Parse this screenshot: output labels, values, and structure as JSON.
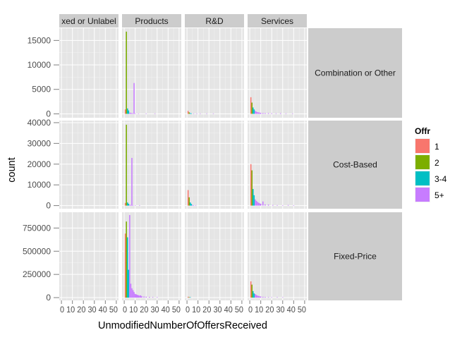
{
  "chart_data": {
    "type": "bar",
    "chart_subtype": "faceted-histogram",
    "xlabel": "UnmodifiedNumberOfOffersReceived",
    "ylabel": "count",
    "grid": true,
    "background": "#E5E5E5",
    "legend": {
      "title": "Offr",
      "placement": "right",
      "entries": [
        {
          "label": "1",
          "color": "#F8766D"
        },
        {
          "label": "2",
          "color": "#7CAE00"
        },
        {
          "label": "3-4",
          "color": "#00BFC4"
        },
        {
          "label": "5+",
          "color": "#C77CFF"
        }
      ]
    },
    "columns": [
      "Mixed or Unlabeled",
      "Products",
      "R&D",
      "Services"
    ],
    "column_labels_visible": [
      "xed or Unlabel",
      "Products",
      "R&D",
      "Services"
    ],
    "x_ticks": [
      "0",
      "10",
      "20",
      "30",
      "40",
      "50"
    ],
    "x_tick_text": [
      "0 10 20 30 40 50",
      "0 10 20 30 40 50",
      "0 10 20 30 40 50",
      "0 10 20 30 40 50"
    ],
    "xlim": [
      -2,
      52
    ],
    "rows": [
      {
        "label": "Combination or Other",
        "ylim": [
          -800,
          17500
        ],
        "y_ticks": [
          0,
          5000,
          10000,
          15000
        ],
        "y_tick_labels": [
          "0",
          "5000",
          "10000",
          "15000"
        ],
        "panels": [
          {
            "column": "Mixed or Unlabeled",
            "bars": []
          },
          {
            "column": "Products",
            "bars": [
              {
                "x": 1,
                "y": 900,
                "offr": "1"
              },
              {
                "x": 2,
                "y": 16800,
                "offr": "2"
              },
              {
                "x": 3,
                "y": 1100,
                "offr": "3-4"
              },
              {
                "x": 4,
                "y": 700,
                "offr": "3-4"
              },
              {
                "x": 5,
                "y": 250,
                "offr": "5+"
              },
              {
                "x": 6,
                "y": 200,
                "offr": "5+"
              },
              {
                "x": 7,
                "y": 150,
                "offr": "5+"
              },
              {
                "x": 8,
                "y": 100,
                "offr": "5+"
              },
              {
                "x": 9,
                "y": 6300,
                "offr": "5+"
              },
              {
                "x": 10,
                "y": 80,
                "offr": "5+"
              },
              {
                "x": 13,
                "y": 60,
                "offr": "5+"
              },
              {
                "x": 20,
                "y": 50,
                "offr": "5+"
              },
              {
                "x": 28,
                "y": 40,
                "offr": "5+"
              }
            ]
          },
          {
            "column": "R&D",
            "bars": [
              {
                "x": 1,
                "y": 600,
                "offr": "1"
              },
              {
                "x": 2,
                "y": 300,
                "offr": "2"
              },
              {
                "x": 3,
                "y": 150,
                "offr": "3-4"
              },
              {
                "x": 4,
                "y": 100,
                "offr": "3-4"
              },
              {
                "x": 6,
                "y": 80,
                "offr": "5+"
              },
              {
                "x": 9,
                "y": 60,
                "offr": "5+"
              },
              {
                "x": 12,
                "y": 50,
                "offr": "5+"
              },
              {
                "x": 18,
                "y": 40,
                "offr": "5+"
              },
              {
                "x": 24,
                "y": 40,
                "offr": "5+"
              }
            ]
          },
          {
            "column": "Services",
            "bars": [
              {
                "x": 1,
                "y": 3400,
                "offr": "1"
              },
              {
                "x": 2,
                "y": 2300,
                "offr": "2"
              },
              {
                "x": 3,
                "y": 1300,
                "offr": "3-4"
              },
              {
                "x": 4,
                "y": 900,
                "offr": "3-4"
              },
              {
                "x": 5,
                "y": 600,
                "offr": "5+"
              },
              {
                "x": 6,
                "y": 450,
                "offr": "5+"
              },
              {
                "x": 7,
                "y": 350,
                "offr": "5+"
              },
              {
                "x": 8,
                "y": 300,
                "offr": "5+"
              },
              {
                "x": 9,
                "y": 250,
                "offr": "5+"
              },
              {
                "x": 10,
                "y": 200,
                "offr": "5+"
              },
              {
                "x": 12,
                "y": 180,
                "offr": "5+"
              },
              {
                "x": 14,
                "y": 150,
                "offr": "5+"
              },
              {
                "x": 17,
                "y": 160,
                "offr": "5+"
              },
              {
                "x": 20,
                "y": 120,
                "offr": "5+"
              },
              {
                "x": 24,
                "y": 100,
                "offr": "5+"
              },
              {
                "x": 28,
                "y": 140,
                "offr": "5+"
              },
              {
                "x": 33,
                "y": 90,
                "offr": "5+"
              },
              {
                "x": 39,
                "y": 80,
                "offr": "5+"
              }
            ]
          }
        ]
      },
      {
        "label": "Cost-Based",
        "ylim": [
          -1500,
          41000
        ],
        "y_ticks": [
          0,
          10000,
          20000,
          30000,
          40000
        ],
        "y_tick_labels": [
          "0",
          "10000",
          "20000",
          "30000",
          "40000"
        ],
        "panels": [
          {
            "column": "Mixed or Unlabeled",
            "bars": []
          },
          {
            "column": "Products",
            "bars": [
              {
                "x": 1,
                "y": 1300,
                "offr": "1"
              },
              {
                "x": 2,
                "y": 39000,
                "offr": "2"
              },
              {
                "x": 3,
                "y": 1500,
                "offr": "3-4"
              },
              {
                "x": 4,
                "y": 900,
                "offr": "3-4"
              },
              {
                "x": 5,
                "y": 400,
                "offr": "5+"
              },
              {
                "x": 6,
                "y": 300,
                "offr": "5+"
              },
              {
                "x": 7,
                "y": 23000,
                "offr": "5+"
              },
              {
                "x": 8,
                "y": 200,
                "offr": "5+"
              },
              {
                "x": 10,
                "y": 120,
                "offr": "5+"
              },
              {
                "x": 14,
                "y": 80,
                "offr": "5+"
              }
            ]
          },
          {
            "column": "R&D",
            "bars": [
              {
                "x": 1,
                "y": 7500,
                "offr": "1"
              },
              {
                "x": 2,
                "y": 4000,
                "offr": "2"
              },
              {
                "x": 3,
                "y": 1500,
                "offr": "3-4"
              },
              {
                "x": 4,
                "y": 800,
                "offr": "3-4"
              },
              {
                "x": 5,
                "y": 300,
                "offr": "5+"
              },
              {
                "x": 6,
                "y": 200,
                "offr": "5+"
              },
              {
                "x": 8,
                "y": 100,
                "offr": "5+"
              }
            ]
          },
          {
            "column": "Services",
            "bars": [
              {
                "x": 1,
                "y": 20000,
                "offr": "1"
              },
              {
                "x": 2,
                "y": 17000,
                "offr": "2"
              },
              {
                "x": 3,
                "y": 8000,
                "offr": "3-4"
              },
              {
                "x": 4,
                "y": 5000,
                "offr": "3-4"
              },
              {
                "x": 5,
                "y": 3000,
                "offr": "5+"
              },
              {
                "x": 6,
                "y": 2300,
                "offr": "5+"
              },
              {
                "x": 7,
                "y": 1800,
                "offr": "5+"
              },
              {
                "x": 8,
                "y": 1400,
                "offr": "5+"
              },
              {
                "x": 9,
                "y": 1100,
                "offr": "5+"
              },
              {
                "x": 10,
                "y": 900,
                "offr": "5+"
              },
              {
                "x": 12,
                "y": 2000,
                "offr": "5+"
              },
              {
                "x": 14,
                "y": 600,
                "offr": "5+"
              },
              {
                "x": 17,
                "y": 500,
                "offr": "5+"
              },
              {
                "x": 21,
                "y": 300,
                "offr": "5+"
              },
              {
                "x": 25,
                "y": 250,
                "offr": "5+"
              },
              {
                "x": 30,
                "y": 200,
                "offr": "5+"
              },
              {
                "x": 35,
                "y": 300,
                "offr": "5+"
              },
              {
                "x": 40,
                "y": 150,
                "offr": "5+"
              }
            ]
          }
        ]
      },
      {
        "label": "Fixed-Price",
        "ylim": [
          -30000,
          920000
        ],
        "y_ticks": [
          0,
          250000,
          500000,
          750000
        ],
        "y_tick_labels": [
          "0",
          "250000",
          "500000",
          "750000"
        ],
        "panels": [
          {
            "column": "Mixed or Unlabeled",
            "bars": []
          },
          {
            "column": "Products",
            "bars": [
              {
                "x": 1,
                "y": 690000,
                "offr": "1"
              },
              {
                "x": 2,
                "y": 820000,
                "offr": "2"
              },
              {
                "x": 3,
                "y": 650000,
                "offr": "3-4"
              },
              {
                "x": 4,
                "y": 300000,
                "offr": "3-4"
              },
              {
                "x": 5,
                "y": 890000,
                "offr": "5+"
              },
              {
                "x": 6,
                "y": 150000,
                "offr": "5+"
              },
              {
                "x": 7,
                "y": 100000,
                "offr": "5+"
              },
              {
                "x": 8,
                "y": 80000,
                "offr": "5+"
              },
              {
                "x": 9,
                "y": 60000,
                "offr": "5+"
              },
              {
                "x": 10,
                "y": 40000,
                "offr": "5+"
              },
              {
                "x": 11,
                "y": 35000,
                "offr": "5+"
              },
              {
                "x": 12,
                "y": 30000,
                "offr": "5+"
              },
              {
                "x": 13,
                "y": 25000,
                "offr": "5+"
              },
              {
                "x": 14,
                "y": 22000,
                "offr": "5+"
              },
              {
                "x": 15,
                "y": 25000,
                "offr": "5+"
              },
              {
                "x": 16,
                "y": 15000,
                "offr": "5+"
              },
              {
                "x": 18,
                "y": 12000,
                "offr": "5+"
              },
              {
                "x": 20,
                "y": 10000,
                "offr": "5+"
              },
              {
                "x": 23,
                "y": 8000,
                "offr": "5+"
              },
              {
                "x": 26,
                "y": 6000,
                "offr": "5+"
              },
              {
                "x": 30,
                "y": 5000,
                "offr": "5+"
              }
            ]
          },
          {
            "column": "R&D",
            "bars": [
              {
                "x": 1,
                "y": 9000,
                "offr": "1"
              },
              {
                "x": 2,
                "y": 5000,
                "offr": "2"
              },
              {
                "x": 3,
                "y": 2000,
                "offr": "3-4"
              }
            ]
          },
          {
            "column": "Services",
            "bars": [
              {
                "x": 1,
                "y": 175000,
                "offr": "1"
              },
              {
                "x": 2,
                "y": 140000,
                "offr": "2"
              },
              {
                "x": 3,
                "y": 70000,
                "offr": "3-4"
              },
              {
                "x": 4,
                "y": 45000,
                "offr": "3-4"
              },
              {
                "x": 5,
                "y": 38000,
                "offr": "5+"
              },
              {
                "x": 6,
                "y": 28000,
                "offr": "5+"
              },
              {
                "x": 7,
                "y": 22000,
                "offr": "5+"
              },
              {
                "x": 8,
                "y": 18000,
                "offr": "5+"
              },
              {
                "x": 9,
                "y": 14000,
                "offr": "5+"
              },
              {
                "x": 10,
                "y": 12000,
                "offr": "5+"
              },
              {
                "x": 12,
                "y": 9000,
                "offr": "5+"
              },
              {
                "x": 14,
                "y": 7000,
                "offr": "5+"
              },
              {
                "x": 17,
                "y": 5000,
                "offr": "5+"
              },
              {
                "x": 20,
                "y": 4000,
                "offr": "5+"
              },
              {
                "x": 25,
                "y": 3000,
                "offr": "5+"
              },
              {
                "x": 30,
                "y": 2000,
                "offr": "5+"
              }
            ]
          }
        ]
      }
    ]
  }
}
